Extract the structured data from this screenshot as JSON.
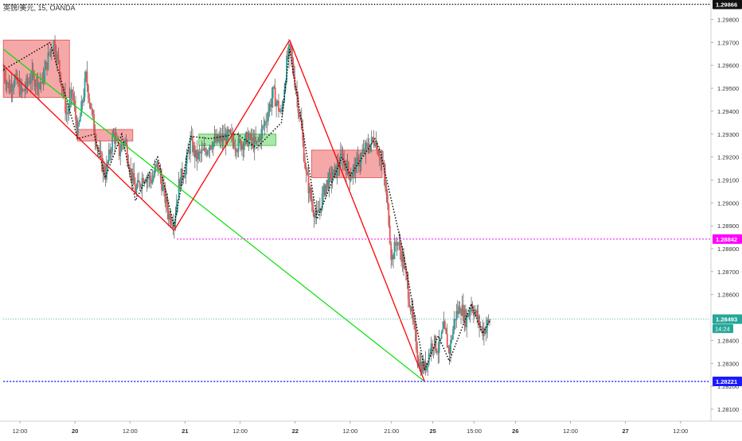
{
  "header": {
    "symbol": "英镑/美元",
    "timeframe": "15",
    "source": "OANDA",
    "title": "英镑/美元, 15, OANDA"
  },
  "colors": {
    "background": "#ffffff",
    "up_candle": "#26a69a",
    "down_candle": "#ef5350",
    "wick": "#555555",
    "zigzag": "#000000",
    "red_line": "#ff0000",
    "green_line": "#00e000",
    "supply_zone": "#f28b8b",
    "demand_zone": "#8ee08e",
    "magenta_level": "#ff00ff",
    "blue_level": "#1a1aff",
    "current_price": "#26a69a",
    "axis_text": "#333333"
  },
  "chart_data": {
    "type": "candlestick",
    "title": "英镑/美元, 15, OANDA",
    "xlabel": "",
    "ylabel": "",
    "ylim": [
      1.28055,
      1.2987
    ],
    "y_ticks": [
      1.281,
      1.282,
      1.283,
      1.284,
      1.285,
      1.286,
      1.287,
      1.288,
      1.289,
      1.29,
      1.291,
      1.292,
      1.293,
      1.294,
      1.295,
      1.296,
      1.297,
      1.298
    ],
    "y_tick_labels": [
      "1.28100",
      "1.28200",
      "1.28300",
      "1.28400",
      "",
      "1.28600",
      "1.28700",
      "1.28800",
      "1.28900",
      "1.29000",
      "1.29100",
      "1.29200",
      "1.29300",
      "1.29400",
      "1.29500",
      "1.29600",
      "1.29700",
      "1.29800"
    ],
    "x_ticks": [
      {
        "label": "12:00",
        "t": 0
      },
      {
        "label": "20",
        "t": 1
      },
      {
        "label": "12:00",
        "t": 2
      },
      {
        "label": "21",
        "t": 3
      },
      {
        "label": "12:00",
        "t": 4
      },
      {
        "label": "22",
        "t": 5
      },
      {
        "label": "12:00",
        "t": 6
      },
      {
        "label": "21:00",
        "t": 6.75
      },
      {
        "label": "25",
        "t": 7.5
      },
      {
        "label": "15:00",
        "t": 8.25
      },
      {
        "label": "26",
        "t": 9
      },
      {
        "label": "12:00",
        "t": 10
      },
      {
        "label": "27",
        "t": 11
      },
      {
        "label": "12:00",
        "t": 12
      }
    ],
    "x_range": [
      -0.3,
      13.05
    ],
    "price_anchors": [
      [
        -0.3,
        1.2958
      ],
      [
        -0.2,
        1.295
      ],
      [
        -0.1,
        1.2954
      ],
      [
        0.05,
        1.2948
      ],
      [
        0.2,
        1.2955
      ],
      [
        0.4,
        1.2952
      ],
      [
        0.55,
        1.2967
      ],
      [
        0.62,
        1.297
      ],
      [
        0.72,
        1.2958
      ],
      [
        0.85,
        1.2938
      ],
      [
        0.95,
        1.2948
      ],
      [
        1.05,
        1.293
      ],
      [
        1.2,
        1.2955
      ],
      [
        1.35,
        1.2932
      ],
      [
        1.45,
        1.292
      ],
      [
        1.55,
        1.2912
      ],
      [
        1.7,
        1.293
      ],
      [
        1.8,
        1.2922
      ],
      [
        1.9,
        1.2928
      ],
      [
        2.0,
        1.2915
      ],
      [
        2.1,
        1.2905
      ],
      [
        2.25,
        1.2912
      ],
      [
        2.4,
        1.291
      ],
      [
        2.5,
        1.2917
      ],
      [
        2.6,
        1.2906
      ],
      [
        2.7,
        1.2895
      ],
      [
        2.8,
        1.2892
      ],
      [
        2.9,
        1.291
      ],
      [
        3.0,
        1.2915
      ],
      [
        3.1,
        1.2927
      ],
      [
        3.2,
        1.292
      ],
      [
        3.35,
        1.2922
      ],
      [
        3.45,
        1.2926
      ],
      [
        3.6,
        1.2927
      ],
      [
        3.8,
        1.2929
      ],
      [
        3.95,
        1.2925
      ],
      [
        4.15,
        1.2928
      ],
      [
        4.3,
        1.2925
      ],
      [
        4.45,
        1.2935
      ],
      [
        4.6,
        1.2948
      ],
      [
        4.75,
        1.2938
      ],
      [
        4.85,
        1.2962
      ],
      [
        4.9,
        1.2967
      ],
      [
        5.0,
        1.2952
      ],
      [
        5.1,
        1.2935
      ],
      [
        5.2,
        1.2912
      ],
      [
        5.3,
        1.29
      ],
      [
        5.4,
        1.2893
      ],
      [
        5.55,
        1.2908
      ],
      [
        5.7,
        1.2912
      ],
      [
        5.85,
        1.292
      ],
      [
        6.0,
        1.2912
      ],
      [
        6.15,
        1.2918
      ],
      [
        6.3,
        1.2924
      ],
      [
        6.45,
        1.2928
      ],
      [
        6.6,
        1.2915
      ],
      [
        6.7,
        1.2893
      ],
      [
        6.75,
        1.2875
      ],
      [
        6.85,
        1.2884
      ],
      [
        6.95,
        1.2876
      ],
      [
        7.05,
        1.2862
      ],
      [
        7.15,
        1.2846
      ],
      [
        7.25,
        1.283
      ],
      [
        7.35,
        1.2828
      ],
      [
        7.5,
        1.284
      ],
      [
        7.6,
        1.2836
      ],
      [
        7.7,
        1.2845
      ],
      [
        7.8,
        1.2835
      ],
      [
        7.9,
        1.285
      ],
      [
        8.0,
        1.2855
      ],
      [
        8.1,
        1.2849
      ],
      [
        8.2,
        1.2856
      ],
      [
        8.3,
        1.285
      ],
      [
        8.4,
        1.2844
      ],
      [
        8.55,
        1.2849
      ]
    ],
    "zones": [
      {
        "type": "supply",
        "t1": -0.3,
        "t2": 0.9,
        "p_top": 1.2971,
        "p_bottom": 1.2946
      },
      {
        "type": "supply",
        "t1": 1.05,
        "t2": 2.05,
        "p_top": 1.2932,
        "p_bottom": 1.2927
      },
      {
        "type": "demand",
        "t1": 3.25,
        "t2": 4.65,
        "p_top": 1.293,
        "p_bottom": 1.2925
      },
      {
        "type": "supply",
        "t1": 5.3,
        "t2": 6.58,
        "p_top": 1.2923,
        "p_bottom": 1.2911
      }
    ],
    "red_lines": [
      {
        "t1": -0.3,
        "p1": 1.296,
        "t2": 2.8,
        "p2": 1.2888
      },
      {
        "t1": 2.8,
        "p1": 1.2888,
        "t2": 4.9,
        "p2": 1.2971
      },
      {
        "t1": 4.9,
        "p1": 1.2971,
        "t2": 6.65,
        "p2": 1.2865
      },
      {
        "t1": 6.65,
        "p1": 1.2865,
        "t2": 7.35,
        "p2": 1.28221
      }
    ],
    "green_line": {
      "t1": -0.3,
      "p1": 1.2967,
      "t2": 7.35,
      "p2": 1.28221
    },
    "zigzag_path": [
      [
        -0.3,
        1.2958
      ],
      [
        0.55,
        1.297
      ],
      [
        1.05,
        1.2928
      ],
      [
        1.35,
        1.293
      ],
      [
        1.55,
        1.2911
      ],
      [
        1.85,
        1.293
      ],
      [
        2.1,
        1.2901
      ],
      [
        2.5,
        1.292
      ],
      [
        2.8,
        1.289
      ],
      [
        3.1,
        1.2929
      ],
      [
        3.45,
        1.2928
      ],
      [
        3.95,
        1.293
      ],
      [
        4.3,
        1.2924
      ],
      [
        4.75,
        1.2935
      ],
      [
        4.9,
        1.2967
      ],
      [
        5.05,
        1.2945
      ],
      [
        5.4,
        1.2893
      ],
      [
        5.85,
        1.292
      ],
      [
        6.0,
        1.2912
      ],
      [
        6.45,
        1.2928
      ],
      [
        6.55,
        1.2922
      ],
      [
        6.95,
        1.288
      ],
      [
        7.35,
        1.2827
      ],
      [
        7.6,
        1.2842
      ],
      [
        7.8,
        1.2831
      ],
      [
        8.2,
        1.2856
      ],
      [
        8.4,
        1.2843
      ],
      [
        8.55,
        1.2849
      ]
    ],
    "levels": [
      {
        "name": "top",
        "value": 1.29866,
        "label": "1.29866",
        "style": "dotted-black",
        "t_start": -0.3
      },
      {
        "name": "magenta",
        "value": 1.28842,
        "label": "1.28842",
        "style": "dotted-magenta",
        "t_start": 2.85
      },
      {
        "name": "current",
        "value": 1.28493,
        "label": "1.28493",
        "countdown": "14:24",
        "style": "dotted-teal",
        "t_start": -0.3
      },
      {
        "name": "blue",
        "value": 1.28221,
        "label": "1.28221",
        "style": "dotted-blue",
        "t_start": -0.3
      }
    ]
  }
}
